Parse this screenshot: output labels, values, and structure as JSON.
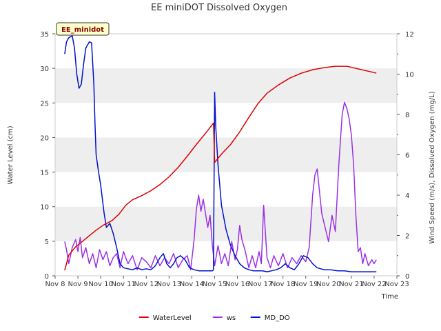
{
  "chart_data": {
    "type": "line",
    "title": "EE miniDOT Dissolved Oxygen",
    "badge": "EE_minidot",
    "xlabel": "Time",
    "ylabel_left": "Water Level (cm)",
    "ylabel_right": "Wind Speed (m/s), Dissolved Oxygen (mg/L)",
    "x_ticks": [
      "Nov 8",
      "Nov 9",
      "Nov 10",
      "Nov 11",
      "Nov 12",
      "Nov 13",
      "Nov 14",
      "Nov 15",
      "Nov 16",
      "Nov 17",
      "Nov 18",
      "Nov 19",
      "Nov 20",
      "Nov 21",
      "Nov 22",
      "Nov 23"
    ],
    "xlim": [
      8,
      23
    ],
    "ylim_left": [
      0,
      35
    ],
    "yticks_left": [
      0,
      5,
      10,
      15,
      20,
      25,
      30,
      35
    ],
    "ylim_right": [
      0,
      12
    ],
    "yticks_right": [
      0,
      2,
      4,
      6,
      8,
      10,
      12
    ],
    "colors": {
      "WaterLevel": "#dd0000",
      "ws": "#9b30e6",
      "MD_DO": "#0010cc",
      "band": "#eeeeee"
    },
    "series": [
      {
        "name": "WaterLevel",
        "axis": "left",
        "x": [
          8.42,
          8.6,
          8.9,
          9.2,
          9.5,
          9.8,
          10.1,
          10.5,
          10.8,
          11.1,
          11.4,
          11.8,
          12.2,
          12.6,
          13.0,
          13.4,
          13.8,
          14.2,
          14.6,
          14.95,
          15.0,
          15.3,
          15.7,
          16.1,
          16.5,
          16.9,
          17.3,
          17.8,
          18.3,
          18.8,
          19.3,
          19.8,
          20.3,
          20.8,
          21.2,
          21.6,
          22.0,
          22.1
        ],
        "y": [
          0.8,
          3.0,
          4.2,
          5.0,
          5.8,
          6.6,
          7.3,
          8.0,
          8.9,
          10.2,
          11.0,
          11.6,
          12.3,
          13.2,
          14.3,
          15.7,
          17.3,
          19.0,
          20.6,
          22.1,
          16.4,
          17.6,
          19.0,
          20.8,
          22.9,
          24.9,
          26.4,
          27.6,
          28.6,
          29.3,
          29.8,
          30.1,
          30.3,
          30.3,
          30.0,
          29.7,
          29.4,
          29.3
        ]
      },
      {
        "name": "ws",
        "axis": "right",
        "x": [
          8.42,
          8.5,
          8.6,
          8.75,
          8.9,
          9.0,
          9.1,
          9.2,
          9.35,
          9.5,
          9.65,
          9.8,
          9.95,
          10.1,
          10.25,
          10.4,
          10.55,
          10.7,
          10.85,
          11.0,
          11.2,
          11.4,
          11.6,
          11.8,
          12.0,
          12.2,
          12.4,
          12.6,
          12.8,
          13.0,
          13.2,
          13.4,
          13.6,
          13.8,
          13.95,
          14.1,
          14.2,
          14.3,
          14.4,
          14.5,
          14.6,
          14.7,
          14.8,
          14.9,
          15.0,
          15.15,
          15.3,
          15.45,
          15.6,
          15.75,
          15.9,
          16.0,
          16.1,
          16.2,
          16.35,
          16.5,
          16.65,
          16.8,
          16.95,
          17.05,
          17.15,
          17.3,
          17.45,
          17.6,
          17.8,
          18.0,
          18.2,
          18.4,
          18.6,
          18.8,
          19.0,
          19.15,
          19.3,
          19.4,
          19.5,
          19.6,
          19.7,
          19.85,
          20.0,
          20.15,
          20.3,
          20.45,
          20.55,
          20.6,
          20.7,
          20.8,
          20.9,
          21.0,
          21.1,
          21.2,
          21.3,
          21.4,
          21.5,
          21.6,
          21.75,
          21.9,
          22.0,
          22.1
        ],
        "y": [
          1.7,
          1.3,
          0.6,
          1.4,
          1.8,
          1.2,
          1.9,
          0.9,
          1.4,
          0.6,
          1.1,
          0.4,
          1.3,
          0.8,
          1.2,
          0.5,
          0.9,
          1.1,
          0.4,
          1.2,
          0.6,
          1.0,
          0.3,
          0.9,
          0.7,
          0.4,
          1.0,
          0.5,
          0.9,
          0.6,
          1.1,
          0.4,
          0.8,
          1.0,
          0.3,
          1.8,
          3.3,
          4.0,
          3.2,
          3.8,
          3.1,
          2.4,
          3.0,
          1.5,
          0.5,
          1.5,
          0.6,
          1.1,
          0.5,
          1.7,
          0.8,
          1.3,
          2.5,
          1.8,
          1.2,
          0.4,
          1.0,
          0.4,
          1.2,
          0.6,
          3.5,
          0.9,
          0.4,
          1.0,
          0.5,
          1.1,
          0.4,
          0.9,
          0.6,
          1.0,
          0.7,
          1.4,
          4.0,
          5.0,
          5.3,
          4.2,
          3.1,
          2.4,
          1.7,
          3.0,
          2.2,
          5.5,
          7.2,
          8.0,
          8.6,
          8.3,
          7.8,
          7.0,
          5.5,
          3.0,
          1.2,
          1.4,
          0.6,
          1.1,
          0.5,
          0.8,
          0.6,
          0.8
        ]
      },
      {
        "name": "MD_DO",
        "axis": "right",
        "x": [
          8.42,
          8.5,
          8.6,
          8.75,
          8.85,
          8.95,
          9.05,
          9.15,
          9.25,
          9.35,
          9.5,
          9.6,
          9.7,
          9.75,
          9.8,
          9.9,
          10.0,
          10.15,
          10.25,
          10.4,
          10.55,
          10.7,
          10.85,
          11.0,
          11.2,
          11.4,
          11.6,
          11.8,
          12.0,
          12.2,
          12.4,
          12.6,
          12.75,
          12.9,
          13.05,
          13.2,
          13.35,
          13.5,
          13.7,
          13.9,
          14.1,
          14.3,
          14.5,
          14.7,
          14.9,
          14.95,
          15.0,
          15.05,
          15.15,
          15.3,
          15.5,
          15.7,
          15.9,
          16.1,
          16.3,
          16.5,
          16.7,
          16.9,
          17.1,
          17.3,
          17.5,
          17.7,
          17.9,
          18.1,
          18.3,
          18.5,
          18.7,
          18.9,
          19.1,
          19.3,
          19.5,
          19.8,
          20.1,
          20.4,
          20.7,
          21.0,
          21.3,
          21.6,
          21.9,
          22.1
        ],
        "y": [
          11.0,
          11.6,
          11.8,
          11.9,
          11.3,
          10.0,
          9.3,
          9.5,
          10.5,
          11.3,
          11.6,
          11.55,
          9.5,
          7.5,
          6.0,
          5.2,
          4.5,
          3.1,
          2.4,
          2.6,
          2.1,
          1.4,
          0.6,
          0.4,
          0.35,
          0.3,
          0.4,
          0.3,
          0.35,
          0.3,
          0.5,
          0.9,
          1.1,
          0.6,
          0.4,
          0.6,
          0.9,
          1.0,
          0.8,
          0.4,
          0.3,
          0.25,
          0.25,
          0.25,
          0.25,
          0.3,
          9.1,
          7.4,
          5.5,
          3.5,
          2.3,
          1.5,
          1.0,
          0.6,
          0.4,
          0.3,
          0.25,
          0.25,
          0.25,
          0.2,
          0.25,
          0.3,
          0.4,
          0.6,
          0.4,
          0.3,
          0.6,
          1.0,
          0.9,
          0.6,
          0.4,
          0.3,
          0.3,
          0.25,
          0.25,
          0.2,
          0.2,
          0.2,
          0.2,
          0.2
        ]
      }
    ],
    "legend": [
      "WaterLevel",
      "ws",
      "MD_DO"
    ],
    "legend_position": "bottom-center",
    "grid": "horizontal-bands"
  }
}
